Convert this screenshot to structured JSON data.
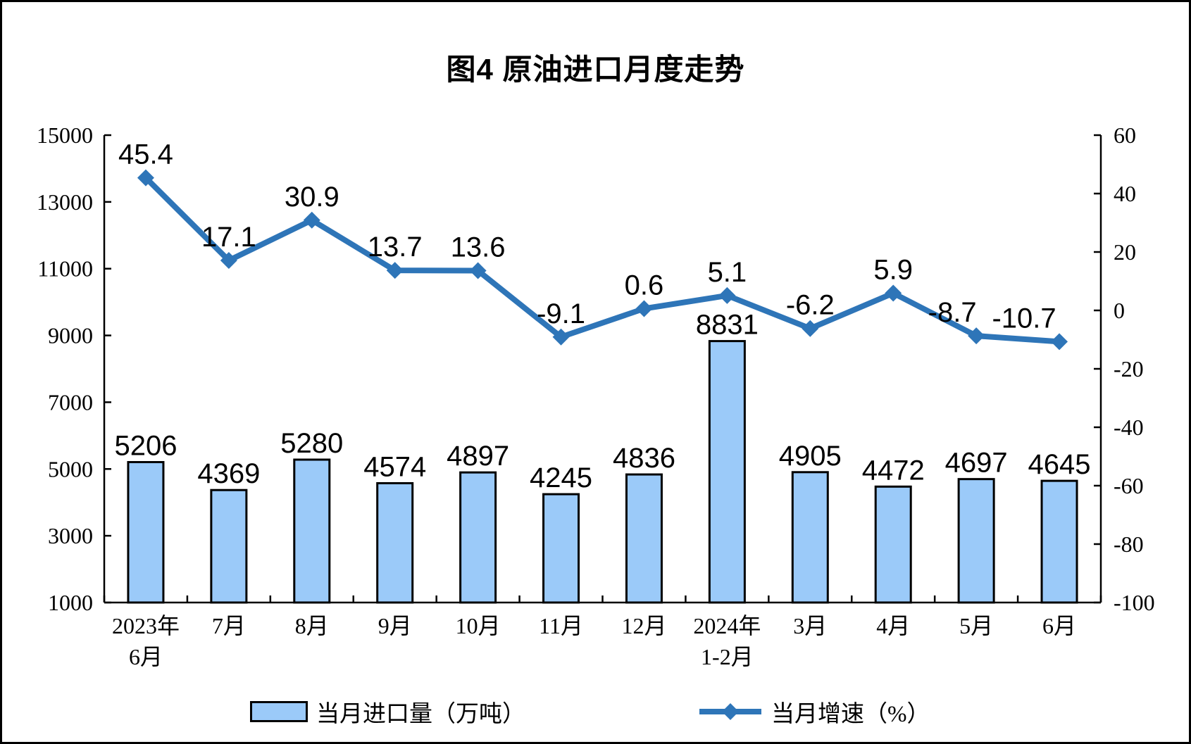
{
  "chart_data": {
    "type": "combo",
    "title": "图4 原油进口月度走势",
    "categories": [
      {
        "line1": "2023年",
        "line2": "6月"
      },
      {
        "line1": "7月"
      },
      {
        "line1": "8月"
      },
      {
        "line1": "9月"
      },
      {
        "line1": "10月"
      },
      {
        "line1": "11月"
      },
      {
        "line1": "12月"
      },
      {
        "line1": "2024年",
        "line2": "1-2月"
      },
      {
        "line1": "3月"
      },
      {
        "line1": "4月"
      },
      {
        "line1": "5月"
      },
      {
        "line1": "6月"
      }
    ],
    "series": [
      {
        "name": "当月进口量（万吨）",
        "type": "bar",
        "axis": "left",
        "values": [
          5206,
          4369,
          5280,
          4574,
          4897,
          4245,
          4836,
          8831,
          4905,
          4472,
          4697,
          4645
        ],
        "labels": [
          "5206",
          "4369",
          "5280",
          "4574",
          "4897",
          "4245",
          "4836",
          "8831",
          "4905",
          "4472",
          "4697",
          "4645"
        ],
        "fill": "#9BCAF9",
        "stroke": "#000000"
      },
      {
        "name": "当月增速（%）",
        "type": "line",
        "axis": "right",
        "values": [
          45.4,
          17.1,
          30.9,
          13.7,
          13.6,
          -9.1,
          0.6,
          5.1,
          -6.2,
          5.9,
          -8.7,
          -10.7
        ],
        "labels": [
          "45.4",
          "17.1",
          "30.9",
          "13.7",
          "13.6",
          "-9.1",
          "0.6",
          "5.1",
          "-6.2",
          "5.9",
          "-8.7",
          "-10.7"
        ],
        "color": "#2E75B8"
      }
    ],
    "left_axis": {
      "min": 1000,
      "max": 15000,
      "step": 2000,
      "tick_labels": [
        "15000",
        "13000",
        "11000",
        "9000",
        "7000",
        "5000",
        "3000",
        "1000"
      ]
    },
    "right_axis": {
      "min": -100,
      "max": 60,
      "step": 20,
      "tick_labels": [
        "60",
        "40",
        "20",
        "0",
        "-20",
        "-40",
        "-60",
        "-80",
        "-100"
      ]
    },
    "grid": false,
    "legend_position": "bottom",
    "colors": {
      "bar_fill": "#9BCAF9",
      "bar_stroke": "#000000",
      "line": "#2E75B8",
      "axis": "#000000",
      "text": "#000000",
      "background": "#FFFFFF"
    }
  }
}
